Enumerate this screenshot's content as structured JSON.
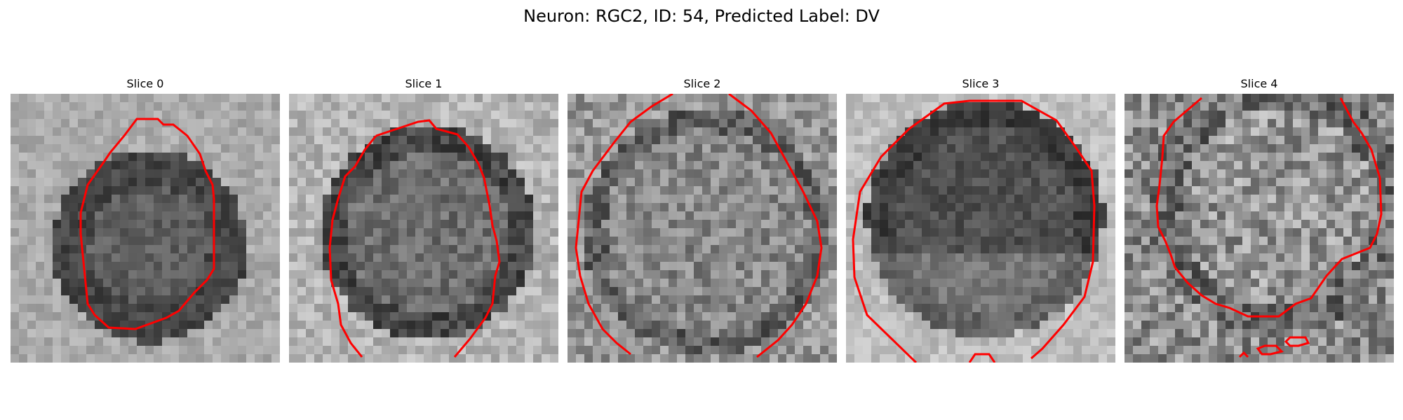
{
  "figure": {
    "title": "Neuron: RGC2, ID: 54, Predicted Label: DV"
  },
  "panels": [
    {
      "title": "Slice 0"
    },
    {
      "title": "Slice 1"
    },
    {
      "title": "Slice 2"
    },
    {
      "title": "Slice 3"
    },
    {
      "title": "Slice 4"
    }
  ],
  "colors": {
    "contour": "#ff0000",
    "background": "#ffffff"
  }
}
